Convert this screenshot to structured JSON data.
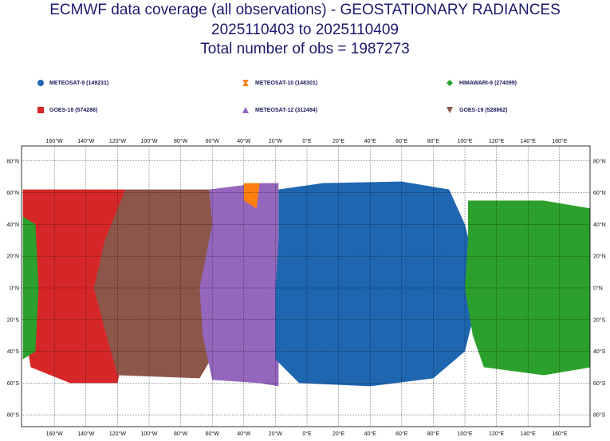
{
  "title": {
    "line1": "ECMWF data coverage (all observations) - GEOSTATIONARY RADIANCES",
    "line2": "2025110403 to 2025110409",
    "line3": "Total number of obs = 1987273"
  },
  "legend": [
    {
      "label": "METEOSAT-9 (149231)",
      "color": "#1f66b0",
      "symbol": "circle"
    },
    {
      "label": "METEOSAT-10 (148301)",
      "color": "#ff7f0e",
      "symbol": "hourglass"
    },
    {
      "label": "HIMAWARI-9 (274099)",
      "color": "#2ca02c",
      "symbol": "diamond"
    },
    {
      "label": "GOES-18 (574286)",
      "color": "#d62728",
      "symbol": "square"
    },
    {
      "label": "METEOSAT-12 (312494)",
      "color": "#9467bd",
      "symbol": "triangle"
    },
    {
      "label": "GOES-19 (528862)",
      "color": "#8c564b",
      "symbol": "triangle-down"
    }
  ],
  "axes": {
    "lon_labels": [
      "160°W",
      "140°W",
      "120°W",
      "100°W",
      "80°W",
      "60°W",
      "40°W",
      "20°W",
      "0°E",
      "20°E",
      "40°E",
      "60°E",
      "80°E",
      "100°E",
      "120°E",
      "140°E",
      "160°E"
    ],
    "lat_labels": [
      "80°N",
      "60°N",
      "40°N",
      "20°N",
      "0°N",
      "20°S",
      "40°S",
      "60°S",
      "80°S"
    ]
  }
}
